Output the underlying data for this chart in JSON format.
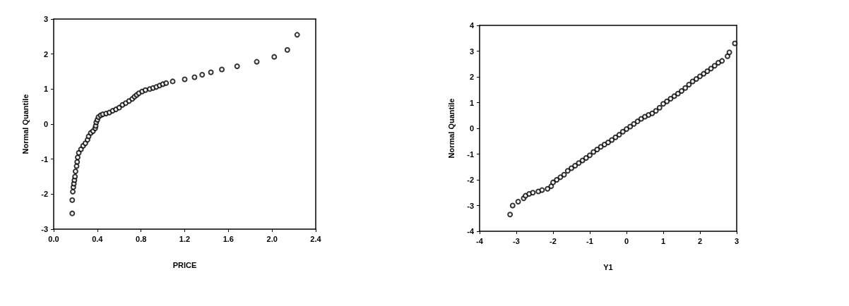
{
  "chart_data": [
    {
      "type": "scatter",
      "xlabel": "PRICE",
      "ylabel": "Normal Quantile",
      "xlim": [
        0,
        2.4
      ],
      "ylim": [
        -3,
        3
      ],
      "xticks": [
        {
          "value": 0,
          "label": "0.0"
        },
        0.4,
        0.8,
        1.2,
        1.6,
        {
          "value": 2,
          "label": "2.0"
        },
        2.4
      ],
      "yticks": [
        -3,
        -2,
        -1,
        0,
        1,
        2,
        3
      ],
      "grid": false,
      "marker": "circle",
      "color": "#000000",
      "x": [
        0.17,
        0.17,
        0.175,
        0.18,
        0.185,
        0.19,
        0.195,
        0.2,
        0.21,
        0.215,
        0.22,
        0.23,
        0.25,
        0.27,
        0.29,
        0.31,
        0.32,
        0.34,
        0.36,
        0.38,
        0.385,
        0.39,
        0.4,
        0.41,
        0.43,
        0.45,
        0.48,
        0.51,
        0.54,
        0.57,
        0.6,
        0.63,
        0.66,
        0.69,
        0.72,
        0.74,
        0.76,
        0.78,
        0.81,
        0.84,
        0.88,
        0.91,
        0.94,
        0.97,
        1.0,
        1.03,
        1.09,
        1.2,
        1.29,
        1.36,
        1.44,
        1.54,
        1.68,
        1.86,
        2.02,
        2.14,
        2.23
      ],
      "values": [
        -2.55,
        -2.17,
        -1.93,
        -1.8,
        -1.7,
        -1.6,
        -1.5,
        -1.35,
        -1.2,
        -1.08,
        -0.95,
        -0.82,
        -0.72,
        -0.62,
        -0.55,
        -0.45,
        -0.35,
        -0.25,
        -0.2,
        -0.12,
        -0.05,
        0.05,
        0.12,
        0.2,
        0.25,
        0.28,
        0.3,
        0.33,
        0.38,
        0.42,
        0.47,
        0.55,
        0.6,
        0.66,
        0.72,
        0.78,
        0.83,
        0.88,
        0.93,
        0.97,
        1.0,
        1.03,
        1.06,
        1.1,
        1.14,
        1.17,
        1.22,
        1.28,
        1.34,
        1.41,
        1.48,
        1.56,
        1.65,
        1.78,
        1.92,
        2.12,
        2.55
      ]
    },
    {
      "type": "scatter",
      "xlabel": "Y1",
      "ylabel": "Normal Quantile",
      "xlim": [
        -4,
        3
      ],
      "ylim": [
        -4,
        4
      ],
      "xticks": [
        -4,
        -3,
        -2,
        -1,
        0,
        1,
        2,
        3
      ],
      "yticks": [
        -4,
        -3,
        -2,
        -1,
        0,
        1,
        2,
        3,
        4
      ],
      "grid": false,
      "marker": "circle",
      "color": "#000000",
      "x": [
        -3.17,
        -3.1,
        -2.95,
        -2.8,
        -2.75,
        -2.65,
        -2.55,
        -2.4,
        -2.3,
        -2.15,
        -2.05,
        -2.0,
        -1.9,
        -1.8,
        -1.7,
        -1.6,
        -1.5,
        -1.4,
        -1.3,
        -1.2,
        -1.1,
        -1.0,
        -0.9,
        -0.8,
        -0.7,
        -0.6,
        -0.5,
        -0.4,
        -0.3,
        -0.2,
        -0.1,
        0.0,
        0.1,
        0.2,
        0.3,
        0.4,
        0.5,
        0.6,
        0.7,
        0.8,
        0.9,
        1.0,
        1.1,
        1.2,
        1.3,
        1.4,
        1.5,
        1.6,
        1.7,
        1.8,
        1.9,
        2.0,
        2.1,
        2.2,
        2.3,
        2.4,
        2.5,
        2.6,
        2.75,
        2.8,
        2.95
      ],
      "values": [
        -3.35,
        -3.0,
        -2.85,
        -2.72,
        -2.62,
        -2.55,
        -2.5,
        -2.45,
        -2.4,
        -2.35,
        -2.25,
        -2.1,
        -2.0,
        -1.9,
        -1.8,
        -1.65,
        -1.55,
        -1.45,
        -1.35,
        -1.25,
        -1.15,
        -1.05,
        -0.92,
        -0.82,
        -0.72,
        -0.63,
        -0.55,
        -0.45,
        -0.35,
        -0.25,
        -0.13,
        -0.03,
        0.07,
        0.17,
        0.27,
        0.37,
        0.45,
        0.52,
        0.58,
        0.68,
        0.8,
        0.95,
        1.05,
        1.15,
        1.25,
        1.35,
        1.45,
        1.57,
        1.7,
        1.82,
        1.92,
        2.02,
        2.12,
        2.22,
        2.32,
        2.43,
        2.55,
        2.62,
        2.8,
        2.95,
        3.3
      ]
    }
  ]
}
